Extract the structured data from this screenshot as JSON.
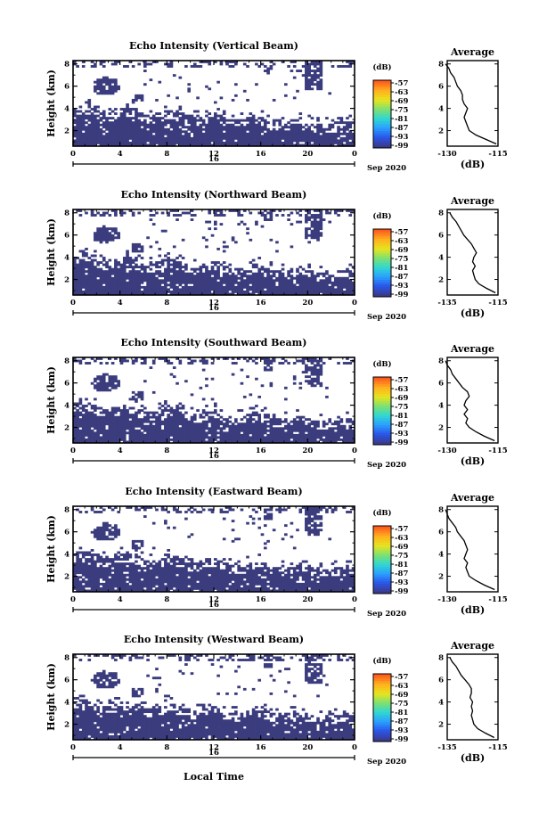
{
  "figure": {
    "xlabel": "Local Time",
    "date_label": "Sep 2020",
    "day_label": "16",
    "x_ticks": [
      "0",
      "4",
      "8",
      "12",
      "16",
      "20",
      "0"
    ],
    "y_ticks": [
      "2",
      "4",
      "6",
      "8"
    ],
    "ylabel": "Height (km)",
    "colorbar": {
      "unit": "(dB)",
      "labels": [
        "-57",
        "-63",
        "-69",
        "-75",
        "-81",
        "-87",
        "-93",
        "-99"
      ],
      "colors": [
        "#ff5a1e",
        "#ffb01e",
        "#e8e41e",
        "#7fe070",
        "#30d8d0",
        "#2aa0ff",
        "#2a55e8",
        "#3a3a8a"
      ]
    },
    "profile": {
      "title": "Average",
      "xlabel": "(dB)",
      "y_ticks": [
        "2",
        "4",
        "6",
        "8"
      ]
    },
    "fill_color": "#3b3c7e"
  },
  "chart_data": [
    {
      "type": "heatmap",
      "title": "Echo Intensity (Vertical Beam)",
      "xlabel": "Local Time",
      "ylabel": "Height (km)",
      "xlim": [
        0,
        24
      ],
      "ylim": [
        0.6,
        8.3
      ],
      "colorbar_range": [
        -99,
        -57
      ],
      "profile": {
        "title": "Average",
        "x_ticks": [
          "-130",
          "-115"
        ],
        "xlim": [
          -130,
          -115
        ],
        "height": [
          0.8,
          1.2,
          1.6,
          2.0,
          2.4,
          2.8,
          3.2,
          3.6,
          4.0,
          4.4,
          4.8,
          5.2,
          5.6,
          6.0,
          6.4,
          6.8,
          7.2,
          7.6,
          8.0
        ],
        "value": [
          -115.5,
          -118.5,
          -121.5,
          -123.5,
          -124.0,
          -124.5,
          -125.0,
          -124.5,
          -124.0,
          -125.0,
          -125.5,
          -125.5,
          -126.0,
          -127.0,
          -127.5,
          -128.0,
          -129.0,
          -129.5,
          -130.5
        ]
      }
    },
    {
      "type": "heatmap",
      "title": "Echo Intensity (Northward Beam)",
      "xlabel": "Local Time",
      "ylabel": "Height (km)",
      "xlim": [
        0,
        24
      ],
      "ylim": [
        0.6,
        8.3
      ],
      "colorbar_range": [
        -99,
        -57
      ],
      "profile": {
        "title": "Average",
        "x_ticks": [
          "-135",
          "-115"
        ],
        "xlim": [
          -135,
          -115
        ],
        "height": [
          0.8,
          1.2,
          1.6,
          2.0,
          2.4,
          2.8,
          3.2,
          3.6,
          4.0,
          4.4,
          4.8,
          5.2,
          5.6,
          6.0,
          6.4,
          6.8,
          7.2,
          7.6,
          8.0
        ],
        "value": [
          -116.0,
          -119.5,
          -122.5,
          -124.0,
          -124.5,
          -125.0,
          -124.0,
          -125.0,
          -124.5,
          -123.5,
          -124.5,
          -125.5,
          -127.0,
          -128.5,
          -129.5,
          -130.5,
          -131.5,
          -133.0,
          -134.0
        ]
      }
    },
    {
      "type": "heatmap",
      "title": "Echo Intensity (Southward Beam)",
      "xlabel": "Local Time",
      "ylabel": "Height (km)",
      "xlim": [
        0,
        24
      ],
      "ylim": [
        0.6,
        8.3
      ],
      "colorbar_range": [
        -99,
        -57
      ],
      "profile": {
        "title": "Average",
        "x_ticks": [
          "-130",
          "-115"
        ],
        "xlim": [
          -130,
          -115
        ],
        "height": [
          0.8,
          1.2,
          1.6,
          2.0,
          2.4,
          2.8,
          3.2,
          3.6,
          4.0,
          4.4,
          4.8,
          5.2,
          5.6,
          6.0,
          6.4,
          6.8,
          7.2,
          7.6,
          8.0
        ],
        "value": [
          -116.0,
          -119.0,
          -121.5,
          -123.5,
          -124.5,
          -124.0,
          -125.0,
          -124.0,
          -125.0,
          -124.5,
          -123.5,
          -124.0,
          -125.5,
          -126.5,
          -127.5,
          -128.5,
          -129.0,
          -130.0,
          -130.5
        ]
      }
    },
    {
      "type": "heatmap",
      "title": "Echo Intensity (Eastward Beam)",
      "xlabel": "Local Time",
      "ylabel": "Height (km)",
      "xlim": [
        0,
        24
      ],
      "ylim": [
        0.6,
        8.3
      ],
      "colorbar_range": [
        -99,
        -57
      ],
      "profile": {
        "title": "Average",
        "x_ticks": [
          "-130",
          "-115"
        ],
        "xlim": [
          -130,
          -115
        ],
        "height": [
          0.8,
          1.2,
          1.6,
          2.0,
          2.4,
          2.8,
          3.2,
          3.6,
          4.0,
          4.4,
          4.8,
          5.2,
          5.6,
          6.0,
          6.4,
          6.8,
          7.2,
          7.6,
          8.0
        ],
        "value": [
          -116.0,
          -119.0,
          -121.5,
          -123.5,
          -124.0,
          -124.5,
          -124.0,
          -125.0,
          -124.5,
          -124.0,
          -124.5,
          -125.0,
          -126.0,
          -127.0,
          -127.5,
          -128.5,
          -129.5,
          -130.0,
          -130.5
        ]
      }
    },
    {
      "type": "heatmap",
      "title": "Echo Intensity (Westward Beam)",
      "xlabel": "Local Time",
      "ylabel": "Height (km)",
      "xlim": [
        0,
        24
      ],
      "ylim": [
        0.6,
        8.3
      ],
      "colorbar_range": [
        -99,
        -57
      ],
      "profile": {
        "title": "Average",
        "x_ticks": [
          "-135",
          "-115"
        ],
        "xlim": [
          -135,
          -115
        ],
        "height": [
          0.8,
          1.2,
          1.6,
          2.0,
          2.4,
          2.8,
          3.2,
          3.6,
          4.0,
          4.4,
          4.8,
          5.2,
          5.6,
          6.0,
          6.4,
          6.8,
          7.2,
          7.6,
          8.0
        ],
        "value": [
          -116.5,
          -120.0,
          -123.0,
          -124.5,
          -125.0,
          -125.5,
          -125.0,
          -125.5,
          -125.0,
          -126.0,
          -125.5,
          -125.5,
          -126.5,
          -128.0,
          -129.5,
          -130.5,
          -131.5,
          -133.0,
          -134.0
        ]
      }
    }
  ]
}
